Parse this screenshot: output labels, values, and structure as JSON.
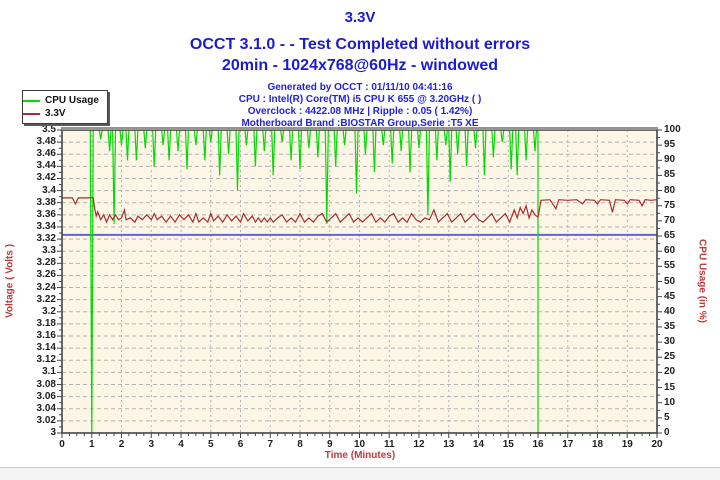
{
  "header": {
    "title": "3.3V",
    "status_line": "OCCT 3.1.0 -  - Test Completed without errors",
    "config_line": "20min - 1024x768@60Hz - windowed",
    "info_lines": [
      "Generated by OCCT : 01/11/10 04:41:16",
      "CPU : Intel(R) Core(TM) i5 CPU K 655 @ 3.20GHz (  )",
      "Overclock : 4422.08 MHz | Ripple : 0.05 ( 1.42%)",
      "Motherboard Brand :BIOSTAR Group,Serie :T5 XE"
    ]
  },
  "legend": {
    "items": [
      {
        "label": "CPU Usage",
        "color": "#00dc00"
      },
      {
        "label": "3.3V",
        "color": "#a33030"
      }
    ]
  },
  "colors": {
    "page_bg": "#ffffff",
    "plot_bg": "#fdf5e6",
    "grid": "#b4b4b4",
    "axis": "#454545",
    "axis_top": "#959595",
    "tick_label": "#1f1f1f",
    "axis_title": "#c13a3a",
    "header_blue": "#1c1ccd",
    "info_blue": "#2323d6",
    "cpu_green": "#00dc00",
    "volt_red": "#a33030",
    "threshold_blue": "#6262da"
  },
  "chart_data": {
    "type": "line",
    "title": "3.3V",
    "xlabel": "Time (Minutes)",
    "ylabel_left": "Voltage ( Volts )",
    "ylabel_right": "CPU Usage (in %)",
    "xlim": [
      0,
      20
    ],
    "ylim_left": [
      3.0,
      3.5
    ],
    "ylim_right": [
      0,
      100
    ],
    "grid": true,
    "legend_position": "top-left",
    "x_ticks": [
      "0",
      "1",
      "2",
      "3",
      "4",
      "5",
      "6",
      "7",
      "8",
      "9",
      "10",
      "11",
      "12",
      "13",
      "14",
      "15",
      "16",
      "17",
      "18",
      "19",
      "20"
    ],
    "y_left_ticks": [
      "3.5",
      "3.48",
      "3.46",
      "3.44",
      "3.42",
      "3.4",
      "3.38",
      "3.36",
      "3.34",
      "3.32",
      "3.3",
      "3.28",
      "3.26",
      "3.24",
      "3.22",
      "3.2",
      "3.18",
      "3.16",
      "3.14",
      "3.12",
      "3.1",
      "3.08",
      "3.06",
      "3.04",
      "3.02",
      "3"
    ],
    "y_right_ticks": [
      "100",
      "95",
      "90",
      "85",
      "80",
      "75",
      "70",
      "65",
      "60",
      "55",
      "50",
      "45",
      "40",
      "35",
      "30",
      "25",
      "20",
      "15",
      "10",
      "5",
      "0"
    ],
    "threshold_line": {
      "name": "3.3V lower limit",
      "value_volts": 3.327,
      "color": "#6262da"
    },
    "series": [
      {
        "name": "CPU Usage",
        "axis": "right",
        "color": "#00dc00",
        "unit": "%",
        "base_value": 100,
        "load_start_min": 0,
        "load_end_min": 16,
        "value_after_end": 0,
        "dips": [
          [
            1.0,
            0
          ],
          [
            1.3,
            97
          ],
          [
            1.6,
            93
          ],
          [
            1.75,
            69
          ],
          [
            2.0,
            95
          ],
          [
            2.2,
            90
          ],
          [
            2.5,
            90
          ],
          [
            2.8,
            94
          ],
          [
            3.1,
            88
          ],
          [
            3.4,
            95
          ],
          [
            3.6,
            90
          ],
          [
            3.9,
            93
          ],
          [
            4.2,
            87
          ],
          [
            4.5,
            95
          ],
          [
            4.8,
            90
          ],
          [
            5.0,
            96
          ],
          [
            5.3,
            85
          ],
          [
            5.6,
            92
          ],
          [
            5.9,
            80
          ],
          [
            6.2,
            95
          ],
          [
            6.5,
            88
          ],
          [
            6.8,
            93
          ],
          [
            7.1,
            85
          ],
          [
            7.4,
            96
          ],
          [
            7.7,
            90
          ],
          [
            8.0,
            87
          ],
          [
            8.3,
            94
          ],
          [
            8.6,
            91
          ],
          [
            8.9,
            69
          ],
          [
            9.2,
            88
          ],
          [
            9.5,
            95
          ],
          [
            9.9,
            79
          ],
          [
            10.2,
            92
          ],
          [
            10.5,
            86
          ],
          [
            10.8,
            95
          ],
          [
            11.1,
            89
          ],
          [
            11.4,
            93
          ],
          [
            11.7,
            86
          ],
          [
            12.0,
            94
          ],
          [
            12.3,
            72
          ],
          [
            12.6,
            90
          ],
          [
            12.9,
            95
          ],
          [
            13.05,
            83
          ],
          [
            13.3,
            92
          ],
          [
            13.6,
            88
          ],
          [
            13.9,
            94
          ],
          [
            14.2,
            85
          ],
          [
            14.5,
            91
          ],
          [
            14.8,
            96
          ],
          [
            15.1,
            87
          ],
          [
            15.3,
            85
          ],
          [
            15.6,
            90
          ],
          [
            15.9,
            93
          ]
        ]
      },
      {
        "name": "3.3V",
        "axis": "left",
        "color": "#a33030",
        "unit": "V",
        "points": [
          [
            0,
            3.388
          ],
          [
            0.35,
            3.388
          ],
          [
            0.45,
            3.378
          ],
          [
            0.55,
            3.388
          ],
          [
            1.05,
            3.388
          ],
          [
            1.1,
            3.37
          ],
          [
            1.15,
            3.358
          ],
          [
            1.2,
            3.365
          ],
          [
            1.3,
            3.352
          ],
          [
            1.4,
            3.36
          ],
          [
            1.5,
            3.348
          ],
          [
            1.6,
            3.36
          ],
          [
            1.7,
            3.352
          ],
          [
            1.8,
            3.36
          ],
          [
            1.9,
            3.352
          ],
          [
            2.0,
            3.355
          ],
          [
            2.1,
            3.368
          ],
          [
            2.15,
            3.352
          ],
          [
            2.3,
            3.355
          ],
          [
            2.45,
            3.348
          ],
          [
            2.55,
            3.358
          ],
          [
            2.7,
            3.352
          ],
          [
            2.85,
            3.36
          ],
          [
            3.0,
            3.352
          ],
          [
            3.1,
            3.362
          ],
          [
            3.2,
            3.352
          ],
          [
            3.35,
            3.358
          ],
          [
            3.5,
            3.348
          ],
          [
            3.65,
            3.358
          ],
          [
            3.8,
            3.348
          ],
          [
            3.95,
            3.36
          ],
          [
            4.1,
            3.352
          ],
          [
            4.25,
            3.36
          ],
          [
            4.4,
            3.348
          ],
          [
            4.5,
            3.362
          ],
          [
            4.6,
            3.348
          ],
          [
            4.75,
            3.355
          ],
          [
            4.9,
            3.348
          ],
          [
            5.0,
            3.362
          ],
          [
            5.1,
            3.35
          ],
          [
            5.25,
            3.358
          ],
          [
            5.4,
            3.348
          ],
          [
            5.55,
            3.36
          ],
          [
            5.7,
            3.35
          ],
          [
            5.85,
            3.358
          ],
          [
            6.0,
            3.348
          ],
          [
            6.1,
            3.362
          ],
          [
            6.25,
            3.35
          ],
          [
            6.4,
            3.358
          ],
          [
            6.5,
            3.348
          ],
          [
            6.6,
            3.355
          ],
          [
            6.7,
            3.348
          ],
          [
            6.8,
            3.355
          ],
          [
            6.9,
            3.348
          ],
          [
            7.0,
            3.355
          ],
          [
            7.1,
            3.348
          ],
          [
            7.25,
            3.355
          ],
          [
            7.4,
            3.36
          ],
          [
            7.55,
            3.348
          ],
          [
            7.7,
            3.355
          ],
          [
            7.85,
            3.348
          ],
          [
            8.0,
            3.362
          ],
          [
            8.15,
            3.348
          ],
          [
            8.3,
            3.355
          ],
          [
            8.45,
            3.348
          ],
          [
            8.6,
            3.358
          ],
          [
            8.75,
            3.362
          ],
          [
            8.9,
            3.348
          ],
          [
            9.05,
            3.355
          ],
          [
            9.2,
            3.362
          ],
          [
            9.35,
            3.348
          ],
          [
            9.5,
            3.355
          ],
          [
            9.65,
            3.362
          ],
          [
            9.8,
            3.348
          ],
          [
            9.95,
            3.355
          ],
          [
            10.1,
            3.348
          ],
          [
            10.25,
            3.355
          ],
          [
            10.4,
            3.362
          ],
          [
            10.55,
            3.348
          ],
          [
            10.7,
            3.355
          ],
          [
            10.85,
            3.348
          ],
          [
            11.0,
            3.358
          ],
          [
            11.15,
            3.362
          ],
          [
            11.3,
            3.348
          ],
          [
            11.45,
            3.355
          ],
          [
            11.6,
            3.348
          ],
          [
            11.75,
            3.362
          ],
          [
            11.9,
            3.352
          ],
          [
            12.05,
            3.348
          ],
          [
            12.2,
            3.355
          ],
          [
            12.35,
            3.352
          ],
          [
            12.5,
            3.368
          ],
          [
            12.65,
            3.348
          ],
          [
            12.8,
            3.355
          ],
          [
            12.95,
            3.362
          ],
          [
            13.1,
            3.348
          ],
          [
            13.25,
            3.355
          ],
          [
            13.4,
            3.362
          ],
          [
            13.55,
            3.348
          ],
          [
            13.7,
            3.355
          ],
          [
            13.85,
            3.362
          ],
          [
            14.0,
            3.352
          ],
          [
            14.15,
            3.348
          ],
          [
            14.3,
            3.355
          ],
          [
            14.45,
            3.362
          ],
          [
            14.6,
            3.348
          ],
          [
            14.75,
            3.355
          ],
          [
            14.9,
            3.362
          ],
          [
            15.05,
            3.348
          ],
          [
            15.2,
            3.368
          ],
          [
            15.3,
            3.355
          ],
          [
            15.4,
            3.372
          ],
          [
            15.5,
            3.362
          ],
          [
            15.6,
            3.375
          ],
          [
            15.7,
            3.355
          ],
          [
            15.8,
            3.368
          ],
          [
            15.9,
            3.36
          ],
          [
            16.0,
            3.356
          ],
          [
            16.1,
            3.384
          ],
          [
            16.4,
            3.385
          ],
          [
            16.6,
            3.37
          ],
          [
            16.7,
            3.385
          ],
          [
            17.0,
            3.384
          ],
          [
            17.3,
            3.385
          ],
          [
            17.5,
            3.378
          ],
          [
            17.6,
            3.385
          ],
          [
            17.9,
            3.384
          ],
          [
            18.0,
            3.378
          ],
          [
            18.1,
            3.385
          ],
          [
            18.4,
            3.384
          ],
          [
            18.5,
            3.364
          ],
          [
            18.6,
            3.385
          ],
          [
            18.9,
            3.384
          ],
          [
            19.0,
            3.378
          ],
          [
            19.1,
            3.385
          ],
          [
            19.4,
            3.384
          ],
          [
            19.5,
            3.375
          ],
          [
            19.6,
            3.385
          ],
          [
            19.8,
            3.384
          ],
          [
            20,
            3.385
          ]
        ]
      }
    ]
  }
}
